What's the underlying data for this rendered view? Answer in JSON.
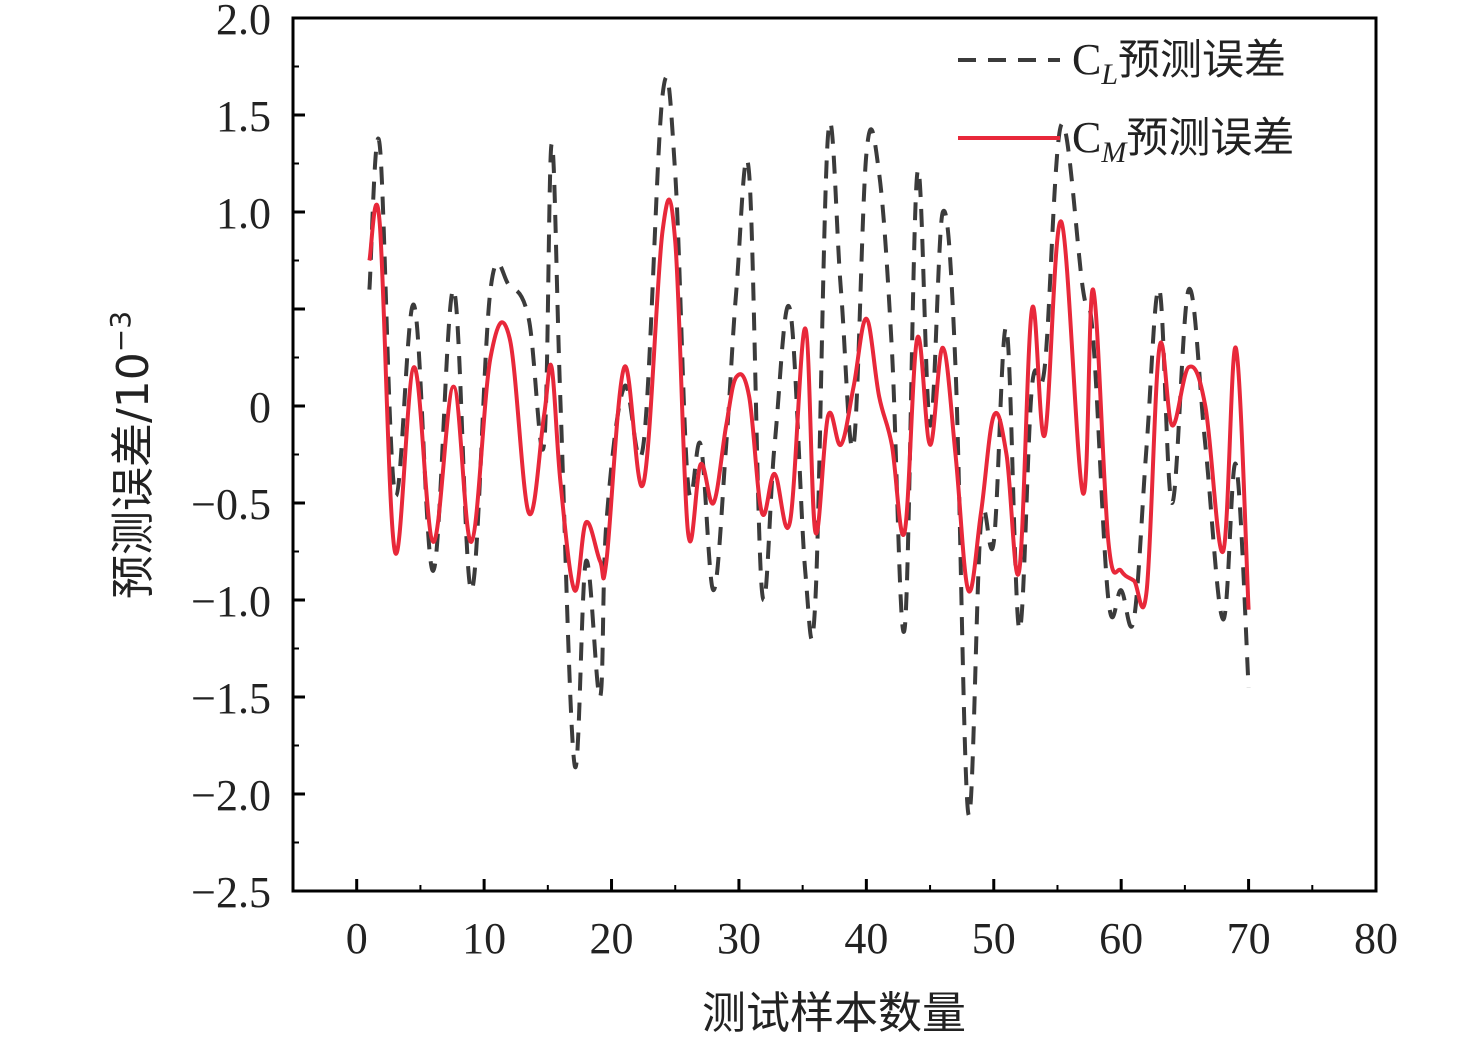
{
  "chart_data": {
    "type": "line",
    "xlabel": "测试样本数量",
    "ylabel_main": "预测误差/10",
    "ylabel_exp": "−3",
    "xlim": [
      -5,
      80
    ],
    "ylim": [
      -2.5,
      2.0
    ],
    "xticks": [
      0,
      10,
      20,
      30,
      40,
      50,
      60,
      70,
      80
    ],
    "yticks": [
      2.0,
      1.5,
      1.0,
      0.5,
      0,
      -0.5,
      -1.0,
      -1.5,
      -2.0,
      -2.5
    ],
    "ytick_labels": [
      "2.0",
      "1.5",
      "1.0",
      "",
      "0",
      "−0.5",
      "−1.0",
      "−1.5",
      "−2.0",
      "−2.5"
    ],
    "legend_position": "top-right",
    "x": [
      1,
      1.8,
      3,
      4.5,
      6,
      7.6,
      9,
      10.5,
      12,
      13.5,
      14.7,
      15.3,
      16,
      17.1,
      18,
      19.1,
      19.6,
      21,
      22.5,
      24,
      25,
      26,
      27,
      28,
      29,
      29.8,
      30.8,
      31.8,
      32.8,
      34,
      35.2,
      36,
      37,
      38,
      39,
      40,
      41,
      42,
      43,
      44,
      45,
      46,
      47,
      48,
      49,
      50,
      51,
      52,
      53,
      54,
      55.3,
      57,
      57.8,
      59,
      60,
      61,
      62,
      63,
      64,
      65.3,
      66.6,
      68,
      69,
      70
    ],
    "series": [
      {
        "legend_main": "C",
        "legend_sub": "L",
        "legend_rest": "预测误差",
        "color": "#3b3b3b",
        "dash": "18,12",
        "values": [
          0.6,
          1.35,
          -0.45,
          0.52,
          -0.85,
          0.6,
          -0.95,
          0.6,
          0.62,
          0.45,
          -0.2,
          1.35,
          0.0,
          -1.85,
          -0.8,
          -1.5,
          -0.6,
          0.1,
          -0.2,
          1.6,
          1.2,
          -0.4,
          -0.2,
          -0.95,
          -0.2,
          0.6,
          1.2,
          -0.95,
          -0.2,
          0.5,
          -0.85,
          -1.0,
          1.4,
          0.6,
          -0.2,
          1.3,
          1.2,
          0.3,
          -1.15,
          1.2,
          -0.1,
          1.0,
          0.2,
          -2.1,
          -0.6,
          -0.7,
          0.4,
          -1.15,
          0.1,
          0.2,
          1.45,
          0.6,
          0.35,
          -1.0,
          -0.95,
          -1.1,
          -0.2,
          0.6,
          -0.5,
          0.6,
          -0.2,
          -1.1,
          -0.3,
          -1.45
        ]
      },
      {
        "legend_main": "C",
        "legend_sub": "M",
        "legend_rest": "预测误差",
        "color": "#e8283a",
        "dash": "",
        "values": [
          0.75,
          0.95,
          -0.75,
          0.2,
          -0.7,
          0.1,
          -0.7,
          0.25,
          0.35,
          -0.55,
          -0.05,
          0.2,
          -0.4,
          -0.95,
          -0.6,
          -0.8,
          -0.8,
          0.2,
          -0.4,
          0.9,
          0.85,
          -0.65,
          -0.3,
          -0.5,
          -0.1,
          0.15,
          0.05,
          -0.55,
          -0.35,
          -0.6,
          0.4,
          -0.65,
          -0.05,
          -0.2,
          0.1,
          0.45,
          0.05,
          -0.2,
          -0.65,
          0.35,
          -0.2,
          0.3,
          -0.25,
          -0.95,
          -0.55,
          -0.05,
          -0.25,
          -0.85,
          0.5,
          -0.15,
          0.95,
          -0.45,
          0.6,
          -0.7,
          -0.85,
          -0.9,
          -0.95,
          0.3,
          -0.1,
          0.2,
          0.0,
          -0.75,
          0.3,
          -1.05
        ]
      }
    ]
  }
}
